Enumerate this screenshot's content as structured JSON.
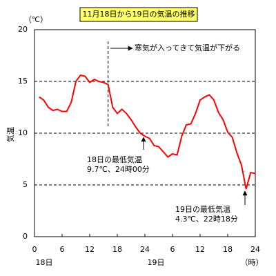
{
  "chart_data": {
    "type": "line",
    "title": "11月18日から19日の気温の推移",
    "y_unit": "（℃）",
    "ylabel": "気温",
    "x_unit": "（時）",
    "x_groups": [
      "18日",
      "19日"
    ],
    "x": [
      1,
      2,
      3,
      4,
      5,
      6,
      7,
      8,
      9,
      10,
      11,
      12,
      13,
      14,
      15,
      16,
      17,
      18,
      19,
      20,
      21,
      22,
      23,
      24,
      25,
      26,
      27,
      28,
      29,
      30,
      31,
      32,
      33,
      34,
      35,
      36,
      37,
      38,
      39,
      40,
      41,
      42,
      43,
      44,
      45,
      46,
      47,
      48
    ],
    "series": [
      {
        "name": "気温",
        "color": "#ff0000",
        "values": [
          13.5,
          13.2,
          12.5,
          12.2,
          12.3,
          12.1,
          12.1,
          13,
          15,
          15.6,
          15.5,
          14.9,
          15.2,
          15,
          14.9,
          14.7,
          12.5,
          11.9,
          12.3,
          11.9,
          11.3,
          10.6,
          10,
          9.7,
          9.5,
          8.8,
          8.7,
          8.2,
          7.7,
          8,
          7.9,
          9.7,
          10.8,
          10.9,
          11.9,
          13.2,
          13.5,
          13.7,
          13.2,
          12,
          11.3,
          10.1,
          9.6,
          8.1,
          6.9,
          4.6,
          6.2,
          6.1
        ]
      }
    ],
    "xlim": [
      0,
      48
    ],
    "xticks": [
      0,
      6,
      12,
      18,
      24,
      {
        "value": 30,
        "label": "6"
      },
      {
        "value": 36,
        "label": "12"
      },
      {
        "value": 42,
        "label": "18"
      },
      {
        "value": 48,
        "label": "24"
      }
    ],
    "ylim": [
      0,
      20
    ],
    "yticks": [
      0,
      5,
      10,
      15,
      20
    ],
    "grid": true,
    "annotations": [
      "寒気が入ってきて気温が下がる",
      "18日の最低気温",
      "9.7℃、24時00分",
      "19日の最低気温",
      "4.3℃、22時18分"
    ]
  }
}
